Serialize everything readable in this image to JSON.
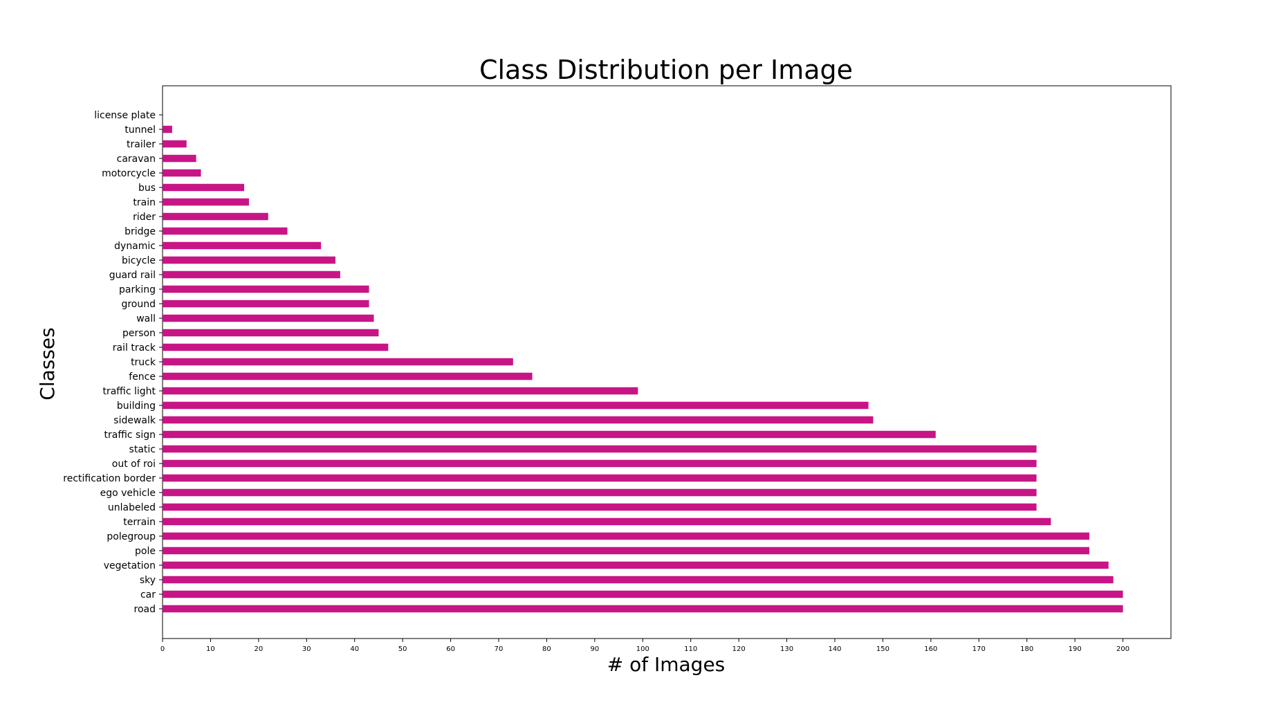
{
  "chart_data": {
    "type": "bar",
    "orientation": "horizontal",
    "title": "Class Distribution per Image",
    "xlabel": "# of Images",
    "ylabel": "Classes",
    "xlim": [
      0,
      210
    ],
    "xticks": [
      0,
      10,
      20,
      30,
      40,
      50,
      60,
      70,
      80,
      90,
      100,
      110,
      120,
      130,
      140,
      150,
      160,
      170,
      180,
      190,
      200
    ],
    "grid": false,
    "bar_color": "#c71585",
    "categories": [
      "road",
      "car",
      "sky",
      "vegetation",
      "pole",
      "polegroup",
      "terrain",
      "unlabeled",
      "ego vehicle",
      "rectification border",
      "out of roi",
      "static",
      "traffic sign",
      "sidewalk",
      "building",
      "traffic light",
      "fence",
      "truck",
      "rail track",
      "person",
      "wall",
      "ground",
      "parking",
      "guard rail",
      "bicycle",
      "dynamic",
      "bridge",
      "rider",
      "train",
      "bus",
      "motorcycle",
      "caravan",
      "trailer",
      "tunnel",
      "license plate"
    ],
    "values": [
      200,
      200,
      198,
      197,
      193,
      193,
      185,
      182,
      182,
      182,
      182,
      182,
      161,
      148,
      147,
      99,
      77,
      73,
      47,
      45,
      44,
      43,
      43,
      37,
      36,
      33,
      26,
      22,
      18,
      17,
      8,
      7,
      5,
      2,
      0
    ]
  }
}
